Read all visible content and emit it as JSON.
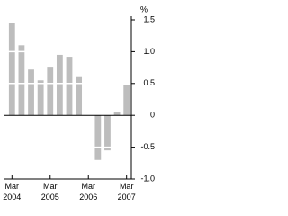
{
  "chart_data": {
    "type": "bar",
    "y_unit": "%",
    "categories": [
      "Mar 2004",
      null,
      null,
      null,
      "Mar 2005",
      null,
      null,
      null,
      "Mar 2006",
      null,
      null,
      null,
      "Mar 2007"
    ],
    "values": [
      1.45,
      1.1,
      0.72,
      0.55,
      0.75,
      0.95,
      0.92,
      0.6,
      0,
      -0.7,
      -0.55,
      0.05,
      0.48
    ],
    "color": "#bdbdbd",
    "ylim": [
      -1.0,
      1.5
    ],
    "yticks": [
      1.5,
      {
        "value": 1.0,
        "label": "1.0"
      },
      0.5,
      0,
      -0.5,
      {
        "value": -1.0,
        "label": "-1.0"
      }
    ],
    "grid": true,
    "grid_color": "#ffffff"
  }
}
